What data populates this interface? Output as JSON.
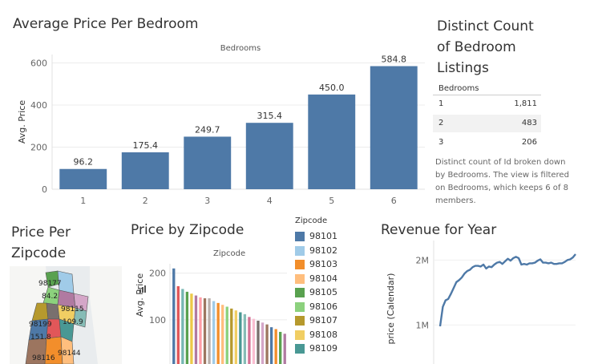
{
  "avg_price_chart": {
    "title": "Average Price Per Bedroom",
    "header": "Bedrooms",
    "ylabel": "Avg. Price"
  },
  "distinct_count": {
    "title_lines": [
      "Distinct Count",
      "of Bedroom",
      "Listings"
    ],
    "column_header": "Bedrooms",
    "rows": [
      {
        "key": "1",
        "value": "1,811"
      },
      {
        "key": "2",
        "value": "483"
      },
      {
        "key": "3",
        "value": "206"
      }
    ],
    "caption_lines": [
      "Distinct count of Id broken down",
      "by Bedrooms. The view is filtered",
      "on Bedrooms, which keeps 6 of 8",
      "members."
    ]
  },
  "zipcode_map": {
    "title_lines": [
      "Price Per",
      "Zipcode"
    ],
    "labels": [
      "98177",
      "84.2",
      "98115",
      "109.9",
      "98199",
      "151.8",
      "98116",
      "98144"
    ]
  },
  "zip_bar_chart": {
    "title": "Price by Zipcode",
    "header": "Zipcode",
    "ylabel": "Avg. Price"
  },
  "zip_legend": {
    "title": "Zipcode",
    "items": [
      {
        "label": "98101",
        "color": "#4e79a7"
      },
      {
        "label": "98102",
        "color": "#a0cbe8"
      },
      {
        "label": "98103",
        "color": "#f28e2b"
      },
      {
        "label": "98104",
        "color": "#ffbe7d"
      },
      {
        "label": "98105",
        "color": "#59a14f"
      },
      {
        "label": "98106",
        "color": "#8cd17d"
      },
      {
        "label": "98107",
        "color": "#b6992d"
      },
      {
        "label": "98108",
        "color": "#f1ce63"
      },
      {
        "label": "98109",
        "color": "#499894"
      }
    ]
  },
  "revenue_chart": {
    "title": "Revenue for Year",
    "ylabel": "price (Calendar)"
  },
  "chart_data": [
    {
      "type": "bar",
      "title": "Average Price Per Bedroom",
      "xlabel": "Bedrooms",
      "ylabel": "Avg. Price",
      "categories": [
        "1",
        "2",
        "3",
        "4",
        "5",
        "6"
      ],
      "values": [
        96.2,
        175.4,
        249.7,
        315.4,
        450.0,
        584.8
      ],
      "value_labels": [
        "96.2",
        "175.4",
        "249.7",
        "315.4",
        "450.0",
        "584.8"
      ],
      "ylim": [
        0,
        640
      ],
      "yticks": [
        0,
        200,
        400,
        600
      ],
      "color": "#4e79a7"
    },
    {
      "type": "bar",
      "title": "Price by Zipcode",
      "xlabel": "Zipcode",
      "ylabel": "Avg. Price",
      "values": [
        210,
        172,
        166,
        160,
        156,
        152,
        148,
        146,
        146,
        140,
        136,
        132,
        128,
        124,
        120,
        116,
        112,
        106,
        102,
        98,
        94,
        90,
        84,
        80,
        74,
        70
      ],
      "colors": [
        "#4e79a7",
        "#e15759",
        "#76b7b2",
        "#59a14f",
        "#edc948",
        "#b07aa1",
        "#ff9da7",
        "#9c755f",
        "#bab0ac",
        "#a0cbe8",
        "#f28e2b",
        "#ffbe7d",
        "#8cd17d",
        "#b6992d",
        "#f1ce63",
        "#499894",
        "#86bcb6",
        "#d37295",
        "#fabfd2",
        "#79706e",
        "#d4a6c8",
        "#9d7660",
        "#4e79a7",
        "#f28e2b",
        "#59a14f",
        "#b07aa1"
      ],
      "ylim": [
        0,
        220
      ],
      "yticks": [
        100,
        200
      ]
    },
    {
      "type": "line",
      "title": "Revenue for Year",
      "ylabel": "price (Calendar)",
      "x": [
        0,
        1,
        2,
        3,
        4,
        5,
        6,
        7,
        8,
        9,
        10,
        11,
        12,
        13,
        14,
        15,
        16,
        17,
        18,
        19,
        20,
        21,
        22,
        23,
        24,
        25,
        26,
        27,
        28,
        29,
        30,
        31,
        32,
        33,
        34,
        35,
        36,
        37,
        38,
        39,
        40,
        41,
        42,
        43,
        44,
        45,
        46,
        47,
        48,
        49,
        50
      ],
      "y": [
        0.98,
        1.28,
        1.38,
        1.4,
        1.48,
        1.57,
        1.66,
        1.69,
        1.73,
        1.79,
        1.83,
        1.85,
        1.89,
        1.91,
        1.91,
        1.9,
        1.93,
        1.87,
        1.9,
        1.89,
        1.93,
        1.96,
        1.97,
        1.94,
        1.98,
        2.02,
        1.99,
        2.03,
        2.05,
        2.03,
        1.93,
        1.94,
        1.93,
        1.95,
        1.95,
        1.96,
        1.99,
        2.01,
        1.96,
        1.96,
        1.95,
        1.96,
        1.94,
        1.94,
        1.95,
        1.95,
        1.97,
        2.0,
        2.01,
        2.04,
        2.09
      ],
      "ylim": [
        0.4,
        2.3
      ],
      "yticks": [
        1,
        2
      ],
      "ytick_labels": [
        "1M",
        "2M"
      ],
      "color": "#4e79a7"
    }
  ]
}
